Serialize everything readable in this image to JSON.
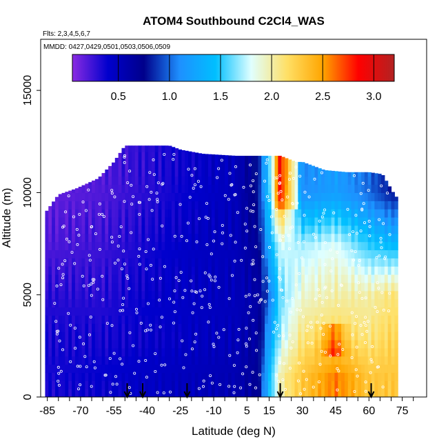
{
  "chart_data": {
    "type": "heatmap",
    "title": "ATOM4 Southbound C2Cl4_WAS",
    "flights_note": "Flts: 2,3,4,5,6,7",
    "dates_note": "MMDD: 0427,0429,0501,0503,0506,0509",
    "xlabel": "Latitude (deg N)",
    "ylabel": "Altitude (m)",
    "xlim": [
      -88,
      86
    ],
    "ylim": [
      0,
      17500
    ],
    "x_ticks": [
      -85,
      -70,
      -55,
      -40,
      -25,
      -10,
      5,
      15,
      30,
      45,
      60,
      75
    ],
    "y_ticks": [
      0,
      5000,
      10000,
      15000
    ],
    "colorbar": {
      "range": [
        0.05,
        3.2
      ],
      "ticks": [
        0.5,
        1.0,
        1.5,
        2.0,
        2.5,
        3.0
      ],
      "tick_labels": [
        "0.5",
        "1.0",
        "1.5",
        "2.0",
        "2.5",
        "3.0"
      ],
      "colors": [
        "#8a2be2",
        "#0000cd",
        "#00008b",
        "#1e90ff",
        "#00bfff",
        "#e0ffff",
        "#ffe066",
        "#ffa500",
        "#ff0000",
        "#b22222"
      ]
    },
    "grid": false,
    "arrows_at_lat": [
      -49,
      -42,
      -22,
      20,
      61
    ],
    "data_extent": {
      "lat_range": [
        -86,
        72
      ],
      "top_altitude_by_lat": [
        [
          -86,
          9000
        ],
        [
          -80,
          9900
        ],
        [
          -72,
          10200
        ],
        [
          -62,
          10700
        ],
        [
          -55,
          11500
        ],
        [
          -50,
          12300
        ],
        [
          -30,
          12300
        ],
        [
          -25,
          12100
        ],
        [
          -15,
          11900
        ],
        [
          0,
          11800
        ],
        [
          10,
          11800
        ],
        [
          20,
          11800
        ],
        [
          27,
          11500
        ],
        [
          30,
          11500
        ],
        [
          40,
          11100
        ],
        [
          50,
          11000
        ],
        [
          60,
          11000
        ],
        [
          66,
          10900
        ],
        [
          72,
          9800
        ]
      ]
    },
    "field_profile_by_lat": [
      {
        "lat": -85,
        "values": [
          0.35,
          0.35,
          0.3,
          0.2,
          0.15
        ]
      },
      {
        "lat": -60,
        "values": [
          0.4,
          0.35,
          0.3,
          0.25,
          0.2
        ]
      },
      {
        "lat": -40,
        "values": [
          0.45,
          0.4,
          0.4,
          0.35,
          0.3
        ]
      },
      {
        "lat": -20,
        "values": [
          0.5,
          0.45,
          0.45,
          0.45,
          0.4
        ]
      },
      {
        "lat": 0,
        "values": [
          0.55,
          0.5,
          0.5,
          0.5,
          0.5
        ]
      },
      {
        "lat": 10,
        "values": [
          0.7,
          0.65,
          0.6,
          0.7,
          0.8
        ]
      },
      {
        "lat": 15,
        "values": [
          1.4,
          1.2,
          1.0,
          1.3,
          1.5
        ]
      },
      {
        "lat": 20,
        "values": [
          2.0,
          1.7,
          1.6,
          1.8,
          2.6
        ]
      },
      {
        "lat": 30,
        "values": [
          2.3,
          2.1,
          1.9,
          1.7,
          1.1
        ]
      },
      {
        "lat": 45,
        "values": [
          2.6,
          2.2,
          2.0,
          1.8,
          1.2
        ]
      },
      {
        "lat": 60,
        "values": [
          2.3,
          2.1,
          2.0,
          1.5,
          1.0
        ]
      },
      {
        "lat": 70,
        "values": [
          2.3,
          2.2,
          2.1,
          1.4,
          0.8
        ]
      }
    ],
    "profile_altitudes": [
      1000,
      3000,
      5000,
      7500,
      10000
    ]
  }
}
